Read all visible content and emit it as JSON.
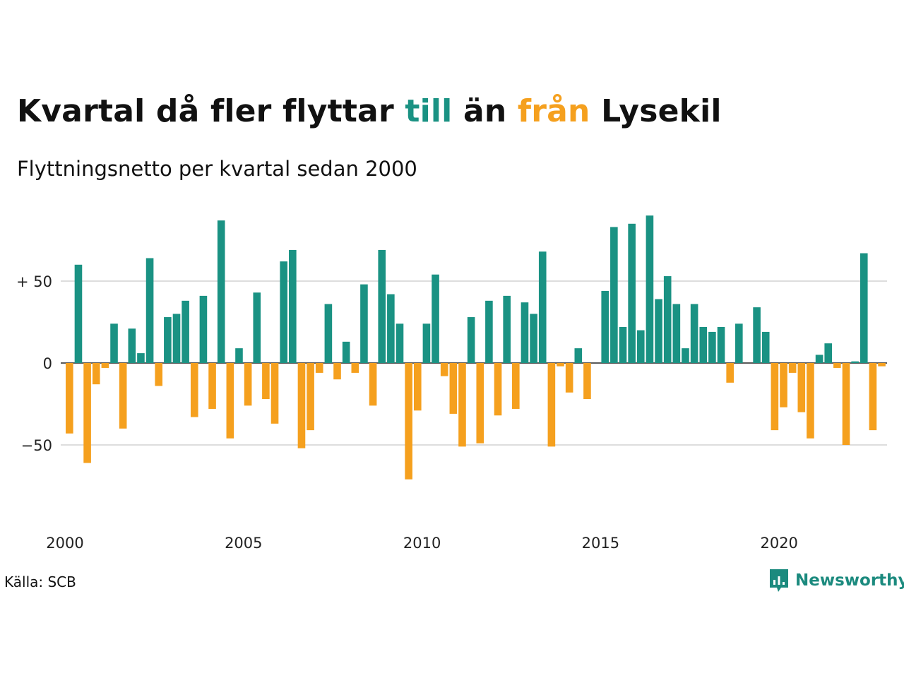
{
  "title": {
    "part1": "Kvartal då fler flyttar ",
    "highlight_in": "till",
    "part2": " än ",
    "highlight_out": "från",
    "part3": " Lysekil"
  },
  "subtitle": "Flyttningsnetto per kvartal sedan 2000",
  "source": "Källa: SCB",
  "brand": "Newsworthy",
  "colors": {
    "positive": "#1a9283",
    "negative": "#f5a01e",
    "grid": "#dddddd",
    "zero_line": "#222222",
    "brand": "#1b8a7e"
  },
  "chart_data": {
    "type": "bar",
    "title": "Kvartal då fler flyttar till än från Lysekil",
    "subtitle": "Flyttningsnetto per kvartal sedan 2000",
    "x_start": "2000 Q1",
    "x_ticks": [
      "2000",
      "2005",
      "2010",
      "2015",
      "2020"
    ],
    "y_ticks": [
      {
        "value": 50,
        "label": "+ 50"
      },
      {
        "value": 0,
        "label": "0"
      },
      {
        "value": -50,
        "label": "−50"
      }
    ],
    "ylim": [
      -90,
      95
    ],
    "grid": true,
    "values": [
      -43,
      60,
      -61,
      -13,
      -3,
      24,
      -40,
      21,
      6,
      64,
      -14,
      28,
      30,
      38,
      -33,
      41,
      -28,
      87,
      -46,
      9,
      -26,
      43,
      -22,
      -37,
      62,
      69,
      -52,
      -41,
      -6,
      36,
      -10,
      13,
      -6,
      48,
      -26,
      69,
      42,
      24,
      -71,
      -29,
      24,
      54,
      -8,
      -31,
      -51,
      28,
      -49,
      38,
      -32,
      41,
      -28,
      37,
      30,
      68,
      -51,
      -2,
      -18,
      9,
      -22,
      0,
      44,
      83,
      22,
      85,
      20,
      90,
      39,
      53,
      36,
      9,
      36,
      22,
      19,
      22,
      -12,
      24,
      0,
      34,
      19,
      -41,
      -27,
      -6,
      -30,
      -46,
      5,
      12,
      -3,
      -50,
      1,
      67,
      -41,
      -2
    ]
  }
}
